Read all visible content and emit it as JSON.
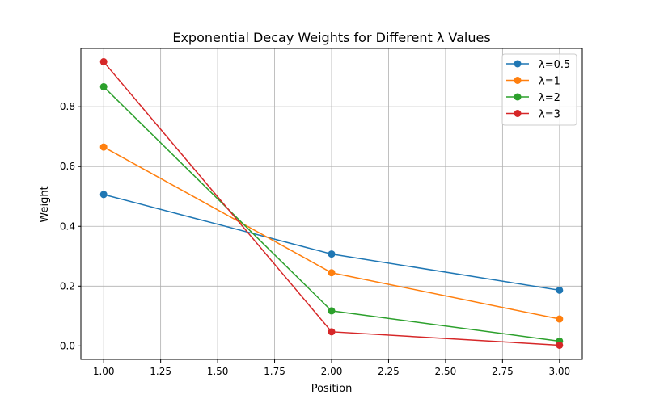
{
  "chart_data": {
    "type": "line",
    "title": "Exponential Decay Weights for Different λ Values",
    "xlabel": "Position",
    "ylabel": "Weight",
    "x": [
      1,
      2,
      3
    ],
    "xlim": [
      0.9,
      3.1
    ],
    "ylim": [
      -0.045,
      0.995
    ],
    "xticks": [
      1.0,
      1.25,
      1.5,
      1.75,
      2.0,
      2.25,
      2.5,
      2.75,
      3.0
    ],
    "xtick_labels": [
      "1.00",
      "1.25",
      "1.50",
      "1.75",
      "2.00",
      "2.25",
      "2.50",
      "2.75",
      "3.00"
    ],
    "yticks": [
      0.0,
      0.2,
      0.4,
      0.6,
      0.8
    ],
    "ytick_labels": [
      "0.0",
      "0.2",
      "0.4",
      "0.6",
      "0.8"
    ],
    "grid": true,
    "legend_position": "top-right",
    "series": [
      {
        "name": "λ=0.5",
        "color": "#1f77b4",
        "values": [
          0.5065,
          0.3072,
          0.1863
        ]
      },
      {
        "name": "λ=1",
        "color": "#ff7f0e",
        "values": [
          0.6652,
          0.2447,
          0.09
        ]
      },
      {
        "name": "λ=2",
        "color": "#2ca02c",
        "values": [
          0.8668,
          0.1173,
          0.0159
        ]
      },
      {
        "name": "λ=3",
        "color": "#d62728",
        "values": [
          0.9503,
          0.0473,
          0.0024
        ]
      }
    ]
  }
}
